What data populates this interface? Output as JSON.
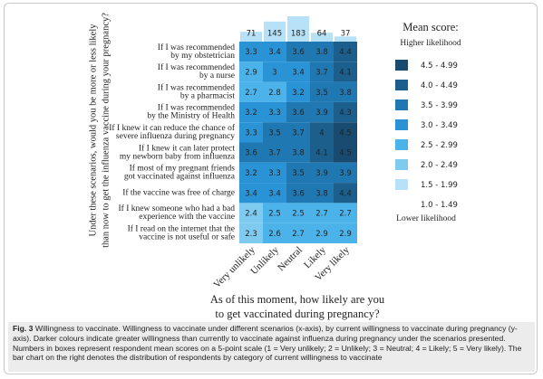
{
  "chart_data": {
    "type": "heatmap",
    "y_label": [
      "Under these scenarios, would you be more or less likely",
      "than now to get the influenza vaccine during your pregnancy?"
    ],
    "x_label": [
      "As of this moment, how likely are you",
      "to get vaccinated during pregnancy?"
    ],
    "categories": [
      "Very unlikely",
      "Unlikely",
      "Neutral",
      "Likely",
      "Very likely"
    ],
    "counts": [
      71,
      145,
      183,
      64,
      37
    ],
    "count_color": "#b7e1f7",
    "rows": [
      [
        "If I was recommended",
        "by my obstetrician"
      ],
      [
        "If I was recommended",
        "by a nurse"
      ],
      [
        "If I was recommended",
        "by a pharmacist"
      ],
      [
        "If I was recommended",
        "by the Ministry of Health"
      ],
      [
        "If I knew it can reduce the chance of",
        "severe influenza during pregnancy"
      ],
      [
        "If I knew it can later protect",
        "my newborn baby from influenza"
      ],
      [
        "If most of my pregnant friends",
        "got vaccinated against influenza"
      ],
      [
        "If the vaccine was free of charge"
      ],
      [
        "If I knew someone who had a bad",
        "experience with the vaccine"
      ],
      [
        "If I read on the internet that the",
        "vaccine is not useful or safe"
      ]
    ],
    "matrix": [
      [
        3.3,
        3.4,
        3.6,
        3.8,
        4.4
      ],
      [
        2.9,
        3.0,
        3.4,
        3.7,
        4.1
      ],
      [
        2.7,
        2.8,
        3.2,
        3.5,
        3.8
      ],
      [
        3.2,
        3.3,
        3.6,
        3.9,
        4.3
      ],
      [
        3.3,
        3.5,
        3.7,
        4.0,
        4.5
      ],
      [
        3.6,
        3.7,
        3.8,
        4.1,
        4.5
      ],
      [
        3.2,
        3.3,
        3.5,
        3.9,
        3.9
      ],
      [
        3.4,
        3.4,
        3.6,
        3.8,
        4.4
      ],
      [
        2.4,
        2.5,
        2.5,
        2.7,
        2.7
      ],
      [
        2.3,
        2.6,
        2.7,
        2.9,
        2.9
      ]
    ],
    "legend": {
      "title": "Mean score:",
      "top": "Higher likelihood",
      "bottom": "Lower likelihood",
      "bins": [
        {
          "label": "4.5 - 4.99",
          "range": [
            4.5,
            4.99
          ],
          "color": "#184b6f"
        },
        {
          "label": "4.0 - 4.49",
          "range": [
            4.0,
            4.49
          ],
          "color": "#1c5f8c"
        },
        {
          "label": "3.5 - 3.99",
          "range": [
            3.5,
            3.99
          ],
          "color": "#1f78b2"
        },
        {
          "label": "3.0 - 3.49",
          "range": [
            3.0,
            3.49
          ],
          "color": "#2993d6"
        },
        {
          "label": "2.5 - 2.99",
          "range": [
            2.5,
            2.99
          ],
          "color": "#4cb3ea"
        },
        {
          "label": "2.0 - 2.49",
          "range": [
            2.0,
            2.49
          ],
          "color": "#7fcbf0"
        },
        {
          "label": "1.5 - 1.99",
          "range": [
            1.5,
            1.99
          ],
          "color": "#b7e1f7"
        },
        {
          "label": "1.0 - 1.49",
          "range": [
            1.0,
            1.49
          ],
          "color": "#ffffff"
        }
      ]
    }
  },
  "caption": {
    "label": "Fig. 3",
    "text": "Willingness to vaccinate. Willingness to vaccinate under different scenarios (x-axis), by current willingness to vaccinate during pregnancy (y-axis). Darker colours indicate greater willingness than currently to vaccinate against influenza during pregnancy under the scenarios presented. Numbers in boxes represent respondent mean scores on a 5-point scale (1 = Very unlikely; 2 = Unlikely; 3 = Neutral; 4 = Likely; 5 = Very likely). The bar chart on the right denotes the distribution of respondents by category of current willingness to vaccinate"
  }
}
